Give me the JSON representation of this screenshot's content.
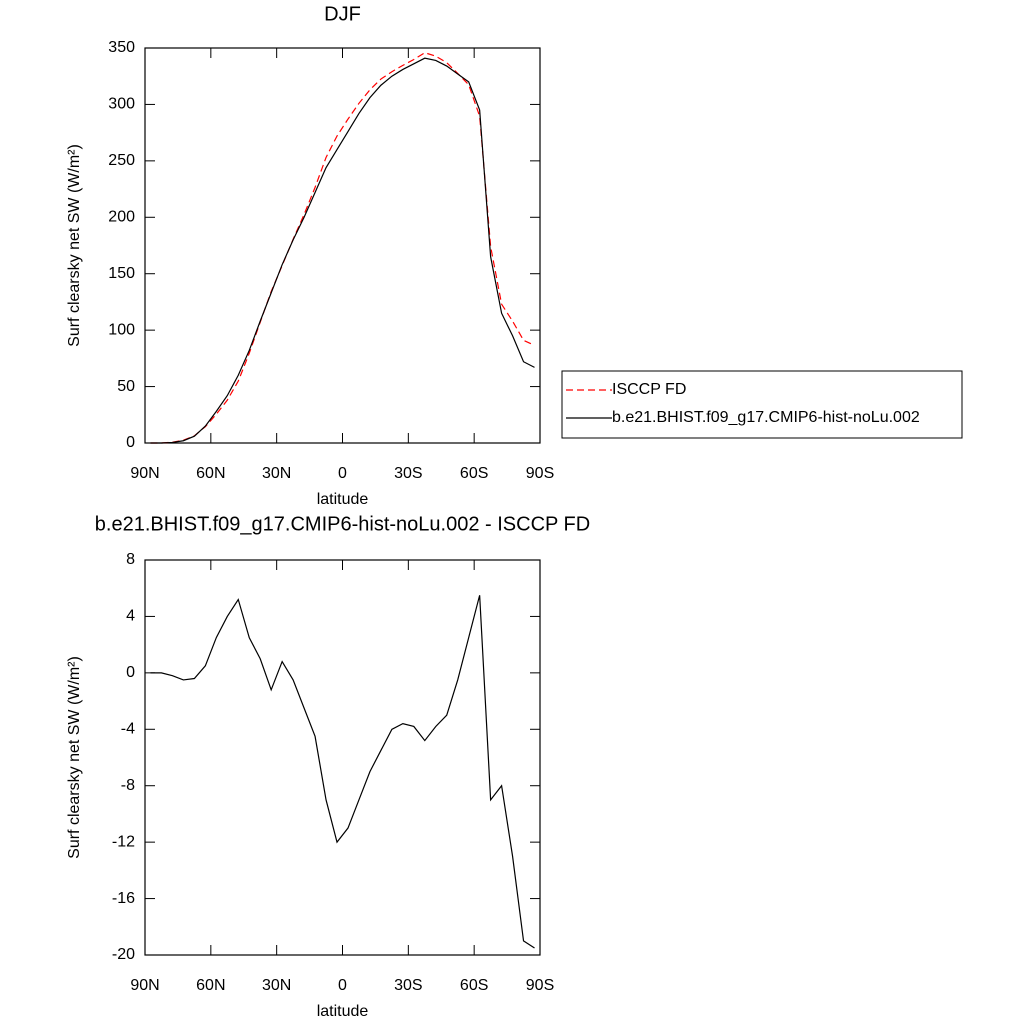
{
  "chart_data": [
    {
      "type": "line",
      "title": "DJF",
      "xlabel": "latitude",
      "ylabel": "Surf clearsky net SW (W/m²)",
      "x": [
        87.5,
        82.5,
        77.5,
        72.5,
        67.5,
        62.5,
        57.5,
        52.5,
        47.5,
        42.5,
        37.5,
        32.5,
        27.5,
        22.5,
        17.5,
        12.5,
        7.5,
        2.5,
        -2.5,
        -7.5,
        -12.5,
        -17.5,
        -22.5,
        -27.5,
        -32.5,
        -37.5,
        -42.5,
        -47.5,
        -52.5,
        -57.5,
        -62.5,
        -67.5,
        -72.5,
        -77.5,
        -82.5,
        -87.5
      ],
      "series": [
        {
          "name": "ISCCP FD",
          "color": "#ff0000",
          "dash": true,
          "values": [
            0,
            0,
            0.7,
            2.5,
            6.4,
            14.5,
            25.5,
            38,
            54.8,
            79.5,
            107,
            134.2,
            157.2,
            180.5,
            202.5,
            226.5,
            253,
            272,
            287,
            301,
            313,
            322.5,
            329,
            334.6,
            339.8,
            345.8,
            342.8,
            337,
            327.5,
            317.5,
            289.5,
            174,
            123,
            108,
            91,
            86.5
          ]
        },
        {
          "name": "b.e21.BHIST.f09_g17.CMIP6-hist-noLu.002",
          "color": "#000000",
          "dash": false,
          "values": [
            0,
            0,
            0.5,
            2,
            6,
            15,
            28,
            42,
            60,
            82,
            108,
            133,
            158,
            180,
            200,
            222,
            244,
            260,
            276,
            292,
            306,
            317,
            325,
            331,
            336,
            341,
            339,
            334,
            327,
            320,
            295,
            165,
            115,
            95,
            72,
            67
          ]
        }
      ],
      "xlim": [
        90,
        -90
      ],
      "xticks": [
        {
          "value": 90,
          "label": "90N"
        },
        {
          "value": 60,
          "label": "60N"
        },
        {
          "value": 30,
          "label": "30N"
        },
        0,
        {
          "value": -30,
          "label": "30S"
        },
        {
          "value": -60,
          "label": "60S"
        },
        {
          "value": -90,
          "label": "90S"
        }
      ],
      "ylim": [
        0,
        350
      ],
      "yticks": [
        0,
        50,
        100,
        150,
        200,
        250,
        300,
        350
      ],
      "legend": "right"
    },
    {
      "type": "line",
      "title": "b.e21.BHIST.f09_g17.CMIP6-hist-noLu.002 - ISCCP FD",
      "xlabel": "latitude",
      "ylabel": "Surf clearsky net SW (W/m²)",
      "x": [
        87.5,
        82.5,
        77.5,
        72.5,
        67.5,
        62.5,
        57.5,
        52.5,
        47.5,
        42.5,
        37.5,
        32.5,
        27.5,
        22.5,
        17.5,
        12.5,
        7.5,
        2.5,
        -2.5,
        -7.5,
        -12.5,
        -17.5,
        -22.5,
        -27.5,
        -32.5,
        -37.5,
        -42.5,
        -47.5,
        -52.5,
        -57.5,
        -62.5,
        -67.5,
        -72.5,
        -77.5,
        -82.5,
        -87.5
      ],
      "values": [
        0,
        0,
        -0.2,
        -0.5,
        -0.4,
        0.5,
        2.5,
        4,
        5.2,
        2.5,
        1,
        -1.2,
        0.8,
        -0.5,
        -2.5,
        -4.5,
        -9,
        -12,
        -11,
        -9,
        -7,
        -5.5,
        -4,
        -3.6,
        -3.8,
        -4.8,
        -3.8,
        -3,
        -0.5,
        2.5,
        5.5,
        -9,
        -8,
        -13,
        -19,
        -19.5
      ],
      "color": "#000000",
      "xlim": [
        90,
        -90
      ],
      "xticks": [
        {
          "value": 90,
          "label": "90N"
        },
        {
          "value": 60,
          "label": "60N"
        },
        {
          "value": 30,
          "label": "30N"
        },
        0,
        {
          "value": -30,
          "label": "30S"
        },
        {
          "value": -60,
          "label": "60S"
        },
        {
          "value": -90,
          "label": "90S"
        }
      ],
      "ylim": [
        -20,
        8
      ],
      "yticks": [
        -20,
        -16,
        -12,
        -8,
        -4,
        0,
        4,
        8
      ]
    }
  ]
}
